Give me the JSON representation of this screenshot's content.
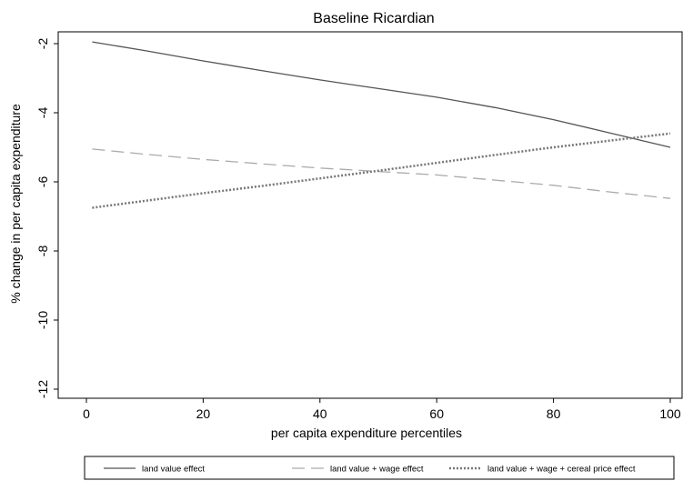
{
  "chart_data": {
    "type": "line",
    "title": "Baseline Ricardian",
    "xlabel": "per capita expenditure percentiles",
    "ylabel": "% change in per capita expenditure",
    "xlim": [
      0,
      100
    ],
    "ylim": [
      -12,
      -2
    ],
    "xticks": [
      0,
      20,
      40,
      60,
      80,
      100
    ],
    "yticks": [
      -2,
      -4,
      -6,
      -8,
      -10,
      -12
    ],
    "grid": false,
    "legend_position": "bottom",
    "x": [
      1,
      10,
      20,
      30,
      40,
      50,
      60,
      70,
      80,
      90,
      100
    ],
    "series": [
      {
        "name": "land value effect",
        "style": "solid",
        "color": "#555555",
        "values": [
          -1.95,
          -2.2,
          -2.5,
          -2.78,
          -3.05,
          -3.3,
          -3.55,
          -3.85,
          -4.2,
          -4.6,
          -5.0
        ]
      },
      {
        "name": "land value + wage effect",
        "style": "dashed",
        "color": "#aaaaaa",
        "values": [
          -5.05,
          -5.2,
          -5.35,
          -5.48,
          -5.6,
          -5.7,
          -5.8,
          -5.95,
          -6.1,
          -6.3,
          -6.48
        ]
      },
      {
        "name": "land value + wage + cereal price effect",
        "style": "dotted",
        "color": "#777777",
        "values": [
          -6.75,
          -6.55,
          -6.33,
          -6.12,
          -5.9,
          -5.68,
          -5.45,
          -5.22,
          -5.0,
          -4.8,
          -4.6
        ]
      }
    ]
  }
}
